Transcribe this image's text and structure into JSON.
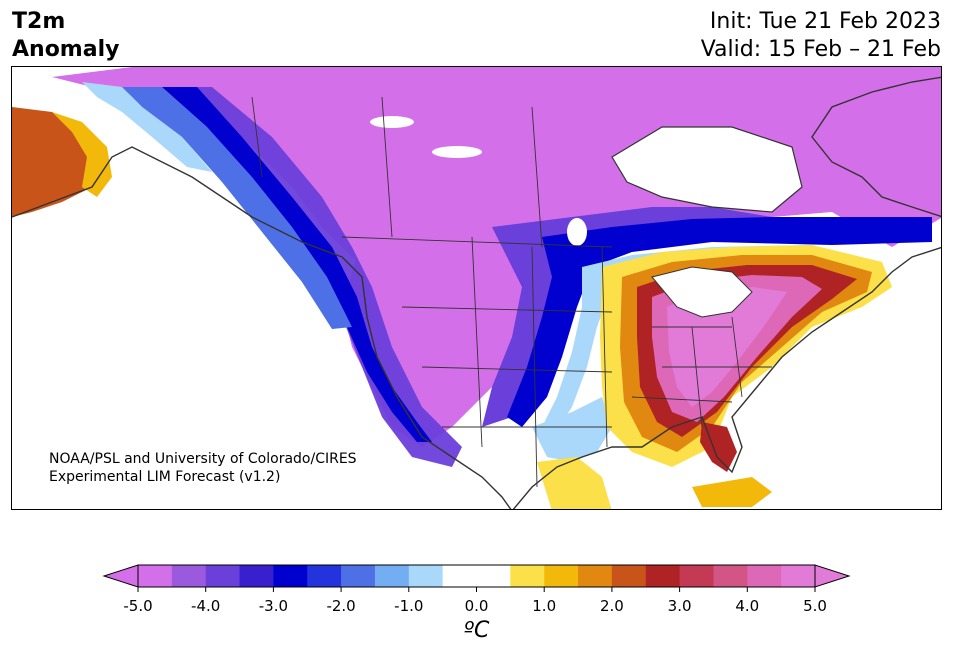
{
  "header": {
    "variable": "T2m",
    "field": "Anomaly",
    "init": "Init: Tue 21 Feb 2023",
    "valid": "Valid: 15 Feb – 21 Feb"
  },
  "credit": {
    "line1": "NOAA/PSL and University of Colorado/CIRES",
    "line2": "Experimental LIM Forecast (v1.2)"
  },
  "colorbar": {
    "unit_label": "ºC",
    "ticks": [
      "-5.0",
      "-4.0",
      "-3.0",
      "-2.0",
      "-1.0",
      "0.0",
      "1.0",
      "2.0",
      "3.0",
      "4.0",
      "5.0"
    ],
    "colors": [
      "#d36fe8",
      "#9b5ade",
      "#6a3fda",
      "#3a1fcf",
      "#0000cf",
      "#2434dd",
      "#4e70e6",
      "#74aef2",
      "#aad8fb",
      "#ffffff",
      "#ffffff",
      "#fbe04a",
      "#f2b90a",
      "#e0880f",
      "#c9541a",
      "#b02325",
      "#c43a55",
      "#d35585",
      "#de68b8",
      "#e27ad8"
    ],
    "under_color": "#d36fe8",
    "over_color": "#e27ad8"
  },
  "map": {
    "region": "North America",
    "anomaly_colors": {
      "strong_cold": "#d36fe8",
      "cold_purple": "#6a3fda",
      "deep_blue": "#0000cf",
      "mid_blue": "#4e70e6",
      "light_blue": "#aad8fb",
      "neutral": "#ffffff",
      "warm_yellow": "#fbe04a",
      "warm_orange": "#e0880f",
      "warm_red": "#b02325",
      "strong_warm": "#e27ad8"
    }
  }
}
